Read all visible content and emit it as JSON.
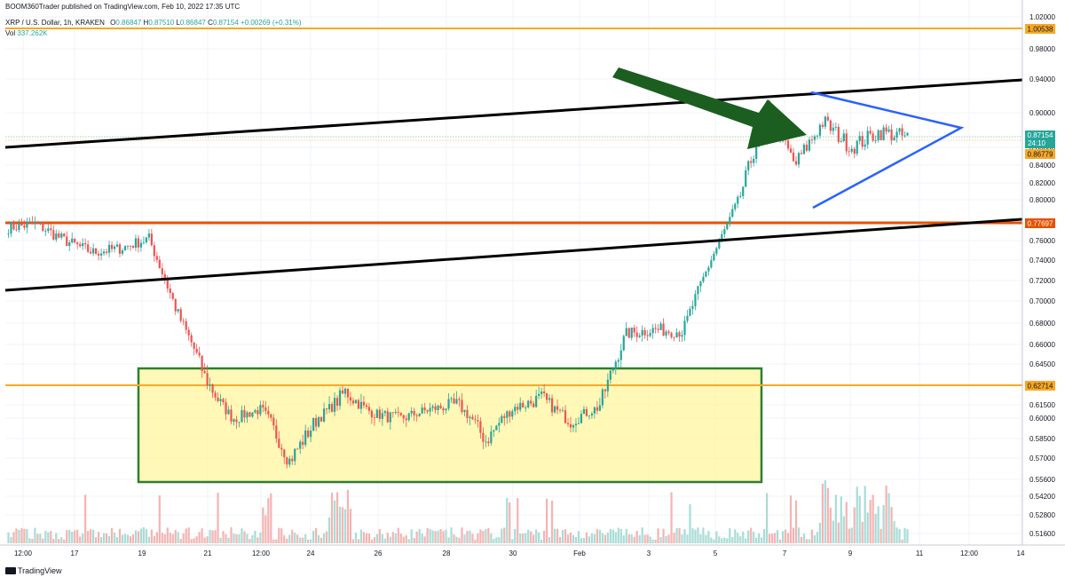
{
  "header": {
    "published": "BOOM360Trader published on TradingView.com, Feb 10, 2022 17:35 UTC",
    "symbol": "XRP / U.S. Dollar, 1h, KRAKEN",
    "open_label": "O",
    "open": "0.86847",
    "high_label": "H",
    "high": "0.87510",
    "low_label": "L",
    "low": "0.86847",
    "close_label": "C",
    "close": "0.87154",
    "change": "+0.00269 (+0.31%)",
    "vol_label": "Vol",
    "vol": "337.262K"
  },
  "footer": {
    "logo_icon": "tradingview-logo-icon",
    "brand": "TradingView"
  },
  "colors": {
    "up": "#26a69a",
    "down": "#ef5350",
    "vol_up": "#a8dcd6",
    "vol_down": "#f5b3b1",
    "orange_level": "#f9a825",
    "red_level": "#e65100",
    "trend": "#000000",
    "triangle": "#2962ff",
    "arrow": "#1b5e20",
    "box_fill": "#fff59d",
    "box_stroke": "#2e7d32"
  },
  "chart_data": {
    "type": "candlestick",
    "title": "",
    "xlabel": "",
    "ylabel": "",
    "y_axis_ticks": [
      "1.02000",
      "0.98000",
      "0.94000",
      "0.90000",
      "0.86000",
      "0.84000",
      "0.82000",
      "0.80000",
      "0.76000",
      "0.74000",
      "0.72000",
      "0.70000",
      "0.68000",
      "0.66000",
      "0.64500",
      "0.61500",
      "0.60000",
      "0.58500",
      "0.57000",
      "0.55600",
      "0.54200",
      "0.52800",
      "0.51600"
    ],
    "x_axis_ticks": [
      "12:00",
      "17",
      "19",
      "21",
      "12:00",
      "24",
      "26",
      "28",
      "30",
      "Feb",
      "3",
      "5",
      "7",
      "9",
      "11",
      "12:00",
      "14"
    ],
    "price_labels": [
      {
        "value": "1.00538",
        "role": "level"
      },
      {
        "value": "0.87154",
        "role": "last"
      },
      {
        "value": "24:10",
        "role": "countdown"
      },
      {
        "value": "0.86779",
        "role": "level"
      },
      {
        "value": "0.77697",
        "role": "level"
      },
      {
        "value": "0.62714",
        "role": "level"
      }
    ],
    "horizontal_levels": [
      {
        "value": 1.00538,
        "color": "orange"
      },
      {
        "value": 0.77697,
        "color": "red"
      },
      {
        "value": 0.62714,
        "color": "orange"
      }
    ],
    "date_range": [
      "Jan 16",
      "Feb 10"
    ],
    "ohlc_sample": [
      {
        "t": "Jan 16 12:00",
        "c": 0.773
      },
      {
        "t": "Jan 17",
        "c": 0.776
      },
      {
        "t": "Jan 18",
        "c": 0.76
      },
      {
        "t": "Jan 19",
        "c": 0.748
      },
      {
        "t": "Jan 20",
        "c": 0.752
      },
      {
        "t": "Jan 20 18:00",
        "c": 0.762
      },
      {
        "t": "Jan 21",
        "c": 0.69
      },
      {
        "t": "Jan 21 12:00",
        "c": 0.635
      },
      {
        "t": "Jan 22",
        "c": 0.6
      },
      {
        "t": "Jan 23",
        "c": 0.61
      },
      {
        "t": "Jan 24",
        "c": 0.568
      },
      {
        "t": "Jan 25",
        "c": 0.6
      },
      {
        "t": "Jan 26",
        "c": 0.625
      },
      {
        "t": "Jan 27",
        "c": 0.605
      },
      {
        "t": "Jan 28",
        "c": 0.6
      },
      {
        "t": "Jan 29",
        "c": 0.61
      },
      {
        "t": "Jan 30",
        "c": 0.615
      },
      {
        "t": "Jan 31",
        "c": 0.583
      },
      {
        "t": "Feb 1",
        "c": 0.612
      },
      {
        "t": "Feb 2",
        "c": 0.62
      },
      {
        "t": "Feb 3",
        "c": 0.598
      },
      {
        "t": "Feb 4",
        "c": 0.612
      },
      {
        "t": "Feb 4 18:00",
        "c": 0.67
      },
      {
        "t": "Feb 5",
        "c": 0.674
      },
      {
        "t": "Feb 6",
        "c": 0.672
      },
      {
        "t": "Feb 7",
        "c": 0.74
      },
      {
        "t": "Feb 7 18:00",
        "c": 0.8
      },
      {
        "t": "Feb 8",
        "c": 0.905
      },
      {
        "t": "Feb 8 12:00",
        "c": 0.84
      },
      {
        "t": "Feb 9",
        "c": 0.89
      },
      {
        "t": "Feb 9 12:00",
        "c": 0.86
      },
      {
        "t": "Feb 10",
        "c": 0.878
      },
      {
        "t": "Feb 10 17:00",
        "c": 0.87154
      }
    ]
  }
}
